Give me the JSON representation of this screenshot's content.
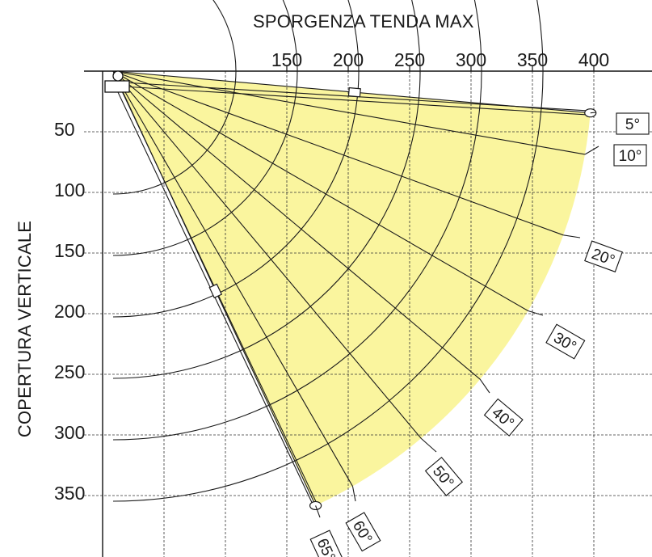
{
  "diagram": {
    "title": "SPORGENZA TENDA MAX",
    "ylabel": "COPERTURA VERTICALE",
    "x_ticks": [
      "150",
      "200",
      "250",
      "300",
      "350",
      "400"
    ],
    "y_ticks": [
      "50",
      "100",
      "150",
      "200",
      "250",
      "300",
      "350"
    ],
    "angle_labels": [
      "5°",
      "10°",
      "20°",
      "30°",
      "40°",
      "50°",
      "60°",
      "65°"
    ],
    "fill_color": "#faf59e",
    "grid_color": "#333333",
    "arm_color": "#1a1a1a"
  }
}
